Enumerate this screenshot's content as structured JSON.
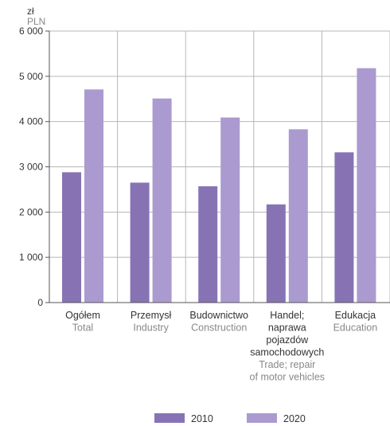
{
  "colors": {
    "series_2010": "#8773b4",
    "series_2020": "#ab9acf",
    "grid": "#b7b7b7",
    "axis": "#555555",
    "text_dark": "#333333",
    "text_light": "#888888"
  },
  "chart_data": {
    "type": "bar",
    "title": "",
    "unit_pl": "zł",
    "unit_en": "PLN",
    "ylim": [
      0,
      6000
    ],
    "yticks": [
      {
        "value": 0,
        "label": "0"
      },
      {
        "value": 1000,
        "label": "1 000"
      },
      {
        "value": 2000,
        "label": "2 000"
      },
      {
        "value": 3000,
        "label": "3 000"
      },
      {
        "value": 4000,
        "label": "4 000"
      },
      {
        "value": 5000,
        "label": "5 000"
      },
      {
        "value": 6000,
        "label": "6 000"
      }
    ],
    "grid": true,
    "legend_position": "bottom",
    "categories": [
      {
        "pl": [
          "Ogółem"
        ],
        "en": [
          "Total"
        ]
      },
      {
        "pl": [
          "Przemysł"
        ],
        "en": [
          "Industry"
        ]
      },
      {
        "pl": [
          "Budownictwo"
        ],
        "en": [
          "Construction"
        ]
      },
      {
        "pl": [
          "Handel;",
          "naprawa",
          "pojazdów",
          "samochodowych"
        ],
        "en": [
          "Trade; repair",
          "of motor vehicles"
        ]
      },
      {
        "pl": [
          "Edukacja"
        ],
        "en": [
          "Education"
        ]
      }
    ],
    "series": [
      {
        "name": "2010",
        "values": [
          2880,
          2650,
          2570,
          2170,
          3320
        ]
      },
      {
        "name": "2020",
        "values": [
          4710,
          4510,
          4090,
          3830,
          5180
        ]
      }
    ]
  }
}
